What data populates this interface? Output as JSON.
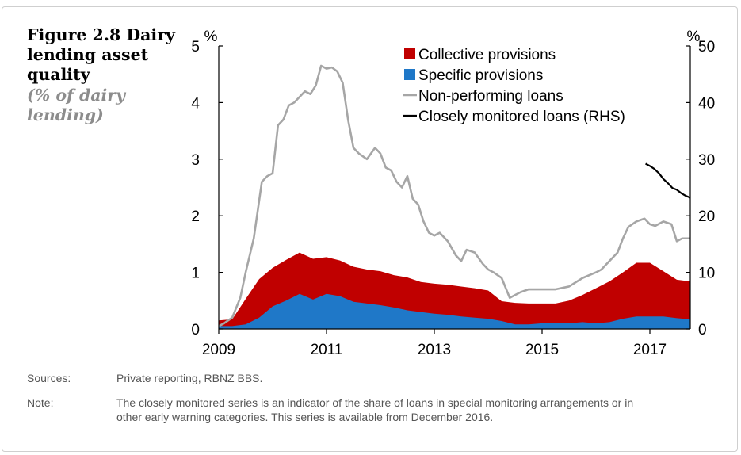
{
  "figure": {
    "title": "Figure 2.8 Dairy lending asset quality",
    "subtitle": "(% of dairy lending)"
  },
  "footer": {
    "sources_label": "Sources:",
    "sources_text": "Private reporting, RBNZ BBS.",
    "note_label": "Note:",
    "note_text": "The closely monitored series is an indicator of the share of loans in special monitoring arrangements or in other early warning categories. This series is available from December 2016."
  },
  "colors": {
    "collective": "#c00000",
    "specific": "#1f78c8",
    "npl": "#a6a6a6",
    "closely": "#000000"
  },
  "chart_data": {
    "type": "area",
    "x_range": [
      2009.0,
      2017.75
    ],
    "x_ticks": [
      2009,
      2011,
      2013,
      2015,
      2017
    ],
    "y_left": {
      "unit": "%",
      "range": [
        0,
        5
      ],
      "ticks": [
        0,
        1,
        2,
        3,
        4,
        5
      ]
    },
    "y_right": {
      "unit": "%",
      "range": [
        0,
        50
      ],
      "ticks": [
        0,
        10,
        20,
        30,
        40,
        50
      ]
    },
    "grid": false,
    "legend_position": "top-right",
    "legend": [
      "Collective provisions",
      "Specific provisions",
      "Non-performing loans",
      "Closely monitored loans (RHS)"
    ],
    "series": [
      {
        "name": "Specific provisions",
        "type": "area",
        "axis": "left",
        "x": [
          2009.0,
          2009.25,
          2009.5,
          2009.75,
          2010.0,
          2010.25,
          2010.5,
          2010.75,
          2011.0,
          2011.25,
          2011.5,
          2011.75,
          2012.0,
          2012.25,
          2012.5,
          2012.75,
          2013.0,
          2013.25,
          2013.5,
          2013.75,
          2014.0,
          2014.25,
          2014.5,
          2014.75,
          2015.0,
          2015.25,
          2015.5,
          2015.75,
          2016.0,
          2016.25,
          2016.5,
          2016.75,
          2017.0,
          2017.25,
          2017.5,
          2017.75
        ],
        "values": [
          0.05,
          0.05,
          0.08,
          0.2,
          0.4,
          0.5,
          0.62,
          0.52,
          0.62,
          0.58,
          0.48,
          0.45,
          0.42,
          0.38,
          0.33,
          0.3,
          0.27,
          0.25,
          0.22,
          0.2,
          0.18,
          0.14,
          0.08,
          0.08,
          0.1,
          0.1,
          0.1,
          0.12,
          0.1,
          0.12,
          0.18,
          0.22,
          0.22,
          0.22,
          0.19,
          0.17
        ]
      },
      {
        "name": "Collective provisions",
        "type": "area",
        "axis": "left",
        "x": [
          2009.0,
          2009.25,
          2009.5,
          2009.75,
          2010.0,
          2010.25,
          2010.5,
          2010.75,
          2011.0,
          2011.25,
          2011.5,
          2011.75,
          2012.0,
          2012.25,
          2012.5,
          2012.75,
          2013.0,
          2013.25,
          2013.5,
          2013.75,
          2014.0,
          2014.25,
          2014.5,
          2014.75,
          2015.0,
          2015.25,
          2015.5,
          2015.75,
          2016.0,
          2016.25,
          2016.5,
          2016.75,
          2017.0,
          2017.25,
          2017.5,
          2017.75
        ],
        "values": [
          0.1,
          0.12,
          0.45,
          0.68,
          0.68,
          0.72,
          0.73,
          0.72,
          0.65,
          0.63,
          0.62,
          0.6,
          0.6,
          0.57,
          0.58,
          0.53,
          0.53,
          0.53,
          0.53,
          0.52,
          0.5,
          0.35,
          0.38,
          0.37,
          0.35,
          0.35,
          0.4,
          0.48,
          0.62,
          0.72,
          0.82,
          0.95,
          0.95,
          0.8,
          0.68,
          0.67
        ]
      },
      {
        "name": "Non-performing loans",
        "type": "line",
        "axis": "left",
        "x": [
          2009.0,
          2009.1,
          2009.25,
          2009.4,
          2009.5,
          2009.65,
          2009.8,
          2009.9,
          2010.0,
          2010.1,
          2010.2,
          2010.3,
          2010.4,
          2010.5,
          2010.6,
          2010.7,
          2010.8,
          2010.9,
          2011.0,
          2011.1,
          2011.2,
          2011.3,
          2011.4,
          2011.5,
          2011.6,
          2011.75,
          2011.9,
          2012.0,
          2012.1,
          2012.2,
          2012.3,
          2012.4,
          2012.5,
          2012.6,
          2012.7,
          2012.8,
          2012.9,
          2013.0,
          2013.1,
          2013.25,
          2013.4,
          2013.5,
          2013.6,
          2013.75,
          2013.9,
          2014.0,
          2014.1,
          2014.25,
          2014.4,
          2014.5,
          2014.6,
          2014.75,
          2014.9,
          2015.0,
          2015.25,
          2015.5,
          2015.75,
          2016.0,
          2016.1,
          2016.25,
          2016.4,
          2016.5,
          2016.6,
          2016.75,
          2016.9,
          2017.0,
          2017.1,
          2017.25,
          2017.4,
          2017.5,
          2017.6,
          2017.75
        ],
        "values": [
          0.05,
          0.1,
          0.2,
          0.55,
          1.0,
          1.6,
          2.6,
          2.7,
          2.75,
          3.6,
          3.7,
          3.95,
          4.0,
          4.1,
          4.2,
          4.15,
          4.3,
          4.65,
          4.6,
          4.62,
          4.55,
          4.35,
          3.7,
          3.2,
          3.1,
          3.0,
          3.2,
          3.1,
          2.85,
          2.8,
          2.6,
          2.5,
          2.7,
          2.3,
          2.2,
          1.9,
          1.7,
          1.65,
          1.7,
          1.55,
          1.3,
          1.2,
          1.4,
          1.35,
          1.15,
          1.05,
          1.0,
          0.9,
          0.55,
          0.6,
          0.65,
          0.7,
          0.7,
          0.7,
          0.7,
          0.75,
          0.9,
          1.0,
          1.05,
          1.2,
          1.35,
          1.6,
          1.8,
          1.9,
          1.95,
          1.85,
          1.82,
          1.9,
          1.85,
          1.55,
          1.6,
          1.6
        ]
      },
      {
        "name": "Closely monitored loans (RHS)",
        "type": "line",
        "axis": "right",
        "x": [
          2016.92,
          2017.0,
          2017.08,
          2017.17,
          2017.25,
          2017.33,
          2017.42,
          2017.5,
          2017.58,
          2017.67,
          2017.75
        ],
        "values": [
          29.2,
          28.8,
          28.3,
          27.5,
          26.5,
          25.8,
          24.9,
          24.6,
          24.0,
          23.5,
          23.2
        ]
      }
    ]
  }
}
